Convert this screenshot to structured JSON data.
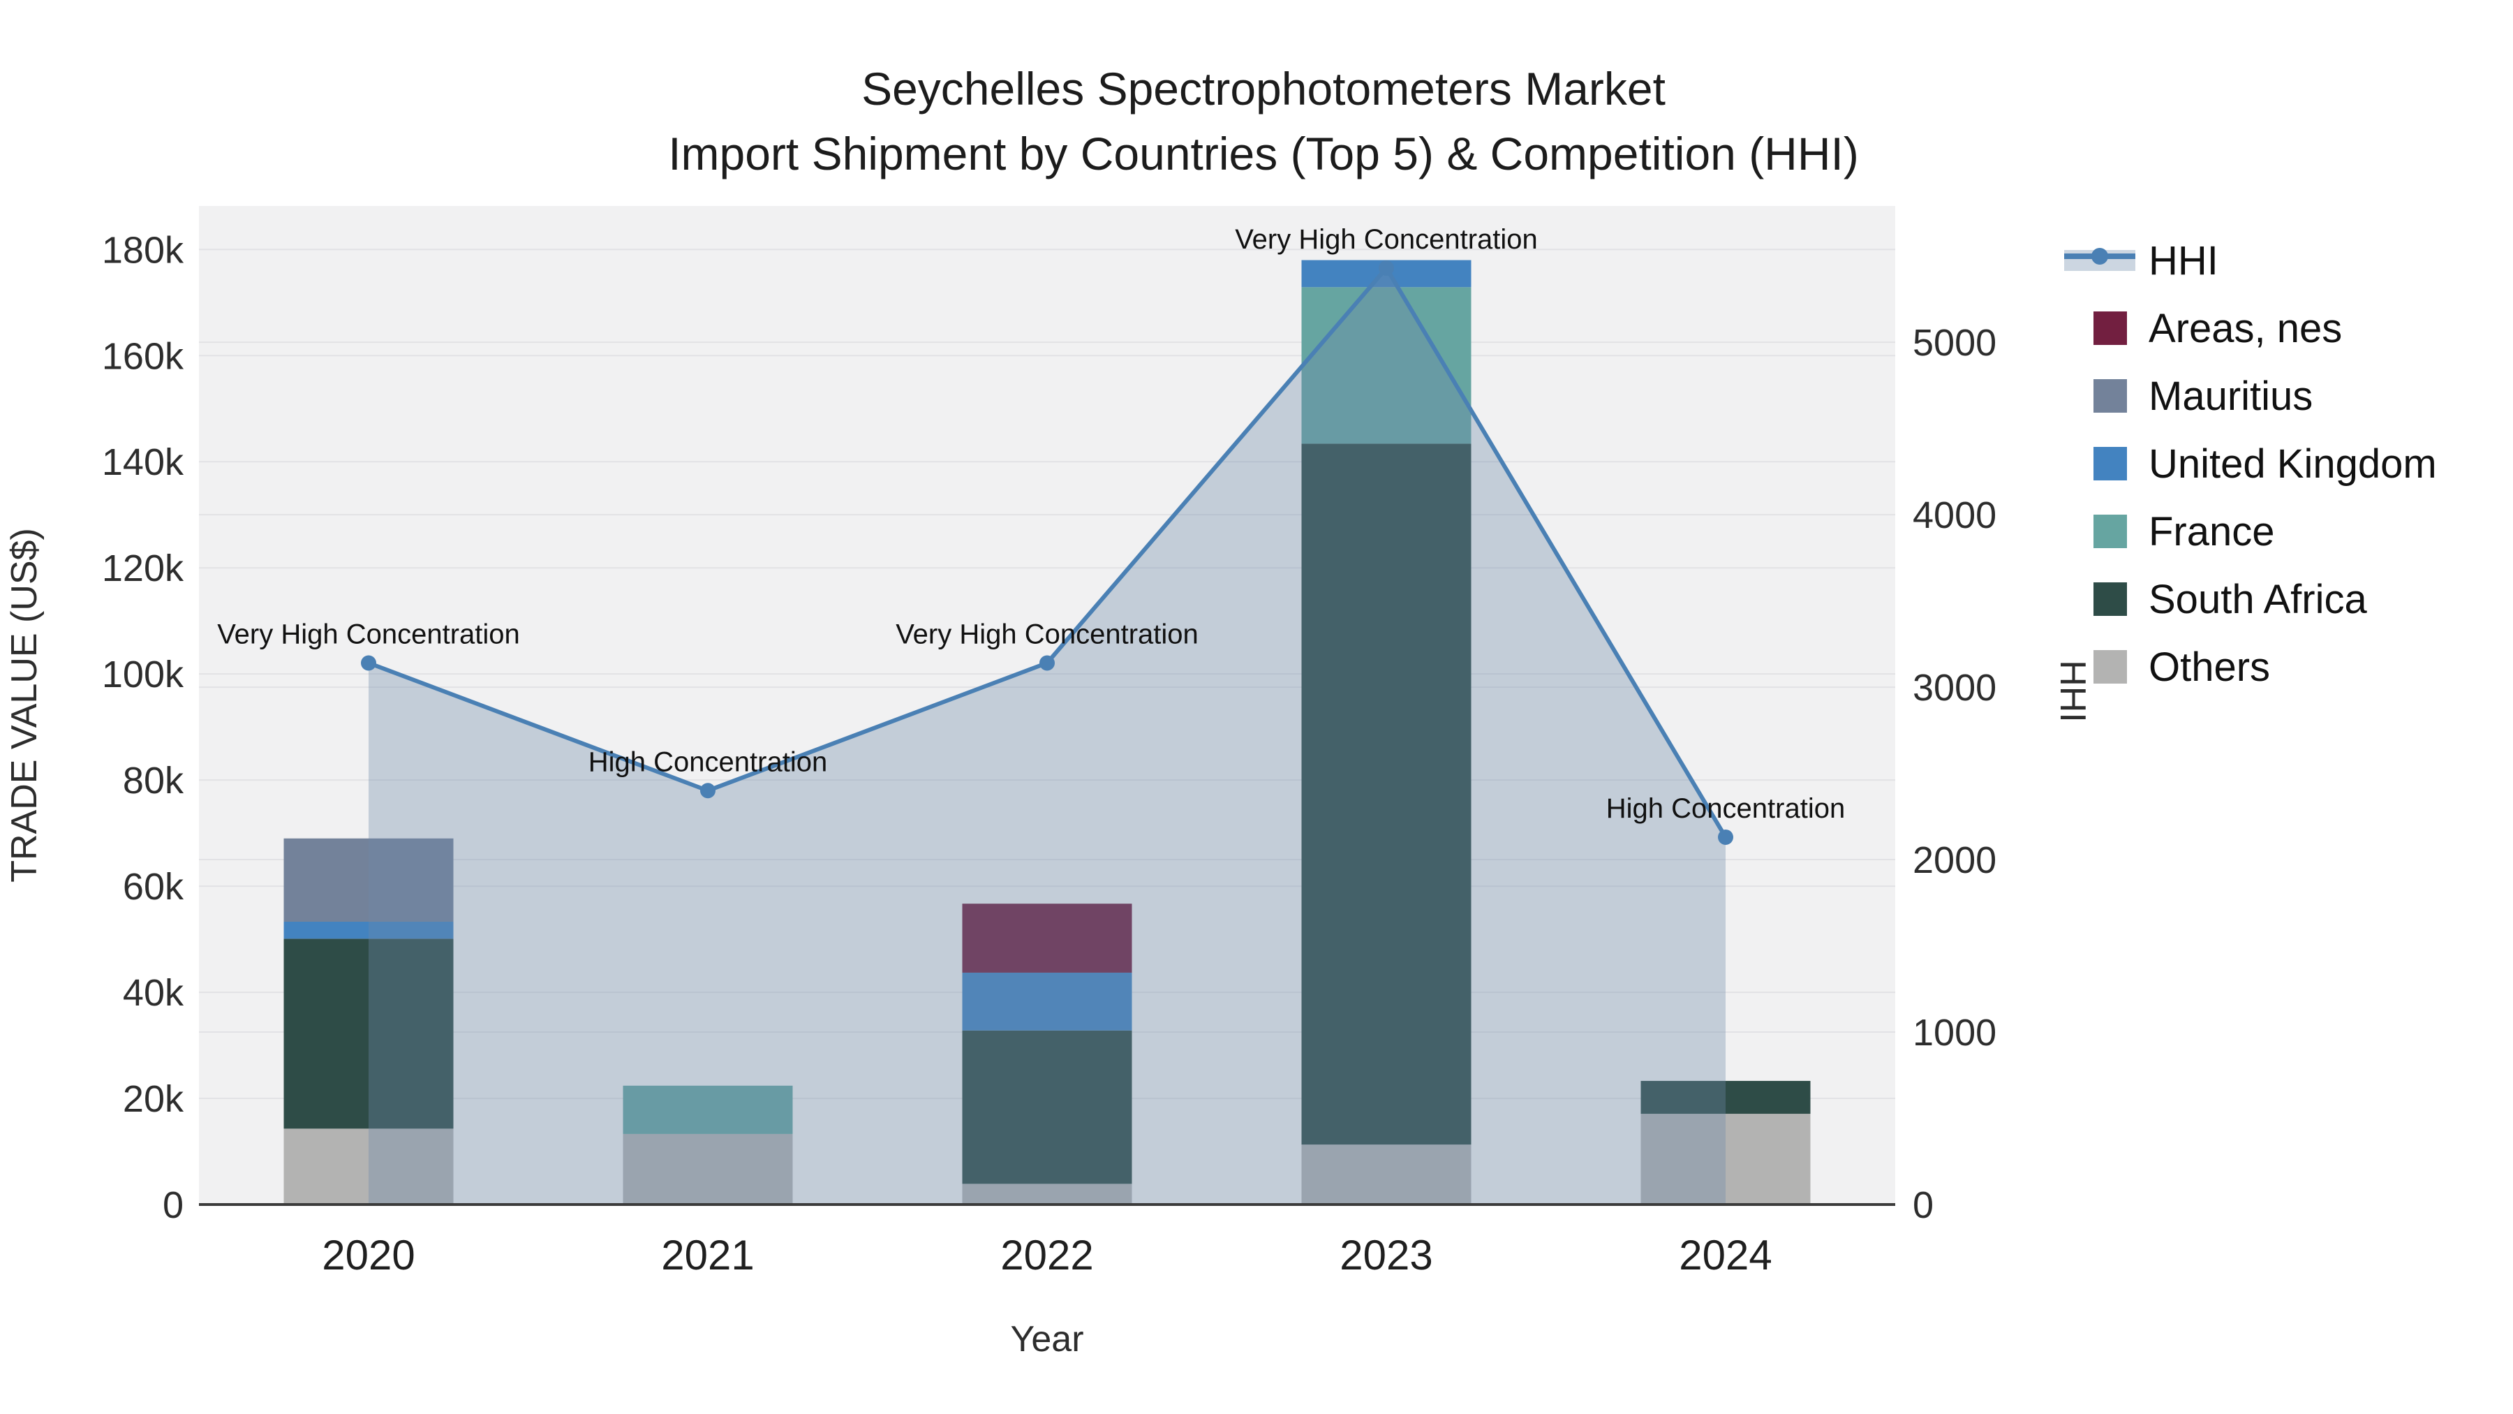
{
  "title": {
    "line1": "Seychelles Spectrophotometers Market",
    "line2": "Import Shipment by Countries (Top 5) & Competition (HHI)"
  },
  "axes": {
    "x": {
      "title": "Year",
      "categories": [
        "2020",
        "2021",
        "2022",
        "2023",
        "2024"
      ]
    },
    "y_left": {
      "title": "TRADE VALUE (US$)",
      "tick_labels": [
        "0",
        "20k",
        "40k",
        "60k",
        "80k",
        "100k",
        "120k",
        "140k",
        "160k",
        "180k"
      ],
      "tick_values": [
        0,
        20000,
        40000,
        60000,
        80000,
        100000,
        120000,
        140000,
        160000,
        180000
      ],
      "range": [
        0,
        188200
      ]
    },
    "y_right": {
      "title": "HHI",
      "tick_labels": [
        "0",
        "1000",
        "2000",
        "3000",
        "4000",
        "5000"
      ],
      "tick_values": [
        0,
        1000,
        2000,
        3000,
        4000,
        5000
      ],
      "range": [
        0,
        5790
      ]
    }
  },
  "legend": {
    "items": [
      {
        "label": "HHI",
        "type": "line",
        "color": "#4a80b4"
      },
      {
        "label": "Areas, nes",
        "type": "swatch",
        "color": "#721f40"
      },
      {
        "label": "Mauritius",
        "type": "swatch",
        "color": "#73829a"
      },
      {
        "label": "United Kingdom",
        "type": "swatch",
        "color": "#4383c0"
      },
      {
        "label": "France",
        "type": "swatch",
        "color": "#66a5a1"
      },
      {
        "label": "South Africa",
        "type": "swatch",
        "color": "#2e4c47"
      },
      {
        "label": "Others",
        "type": "swatch",
        "color": "#b3b3b2"
      }
    ]
  },
  "chart_data": {
    "type": "bar+line",
    "categories": [
      "2020",
      "2021",
      "2022",
      "2023",
      "2024"
    ],
    "bar_value_unit": "US$",
    "stack_order_note": "series listed bottom-to-top of the stack",
    "series": [
      {
        "name": "Others",
        "color": "#b3b3b2",
        "values": [
          14300,
          13300,
          3900,
          11300,
          17100
        ]
      },
      {
        "name": "South Africa",
        "color": "#2e4c47",
        "values": [
          35800,
          0,
          28900,
          132100,
          6200
        ]
      },
      {
        "name": "France",
        "color": "#66a5a1",
        "values": [
          0,
          9100,
          0,
          29500,
          0
        ]
      },
      {
        "name": "United Kingdom",
        "color": "#4383c0",
        "values": [
          3200,
          0,
          10900,
          5100,
          0
        ]
      },
      {
        "name": "Mauritius",
        "color": "#73829a",
        "values": [
          15700,
          0,
          0,
          0,
          0
        ]
      },
      {
        "name": "Areas, nes",
        "color": "#721f40",
        "values": [
          0,
          0,
          13000,
          0,
          0
        ]
      }
    ],
    "bar_totals": [
      69000,
      22400,
      56700,
      178000,
      23300
    ],
    "line_series": {
      "name": "HHI",
      "axis": "right",
      "color": "#4a80b4",
      "area_fill": "rgba(110,138,170,0.35)",
      "values": [
        3140,
        2400,
        3140,
        5430,
        2130
      ]
    },
    "annotations": [
      "Very High Concentration",
      "High Concentration",
      "Very High Concentration",
      "Very High Concentration",
      "High Concentration"
    ],
    "layout_hints": {
      "plot_bg": "#f1f1f2",
      "grid_color": "#e2e2e5",
      "axis_line_color": "#3b3b3b",
      "grid_on": true,
      "legend_position": "right-top"
    }
  }
}
